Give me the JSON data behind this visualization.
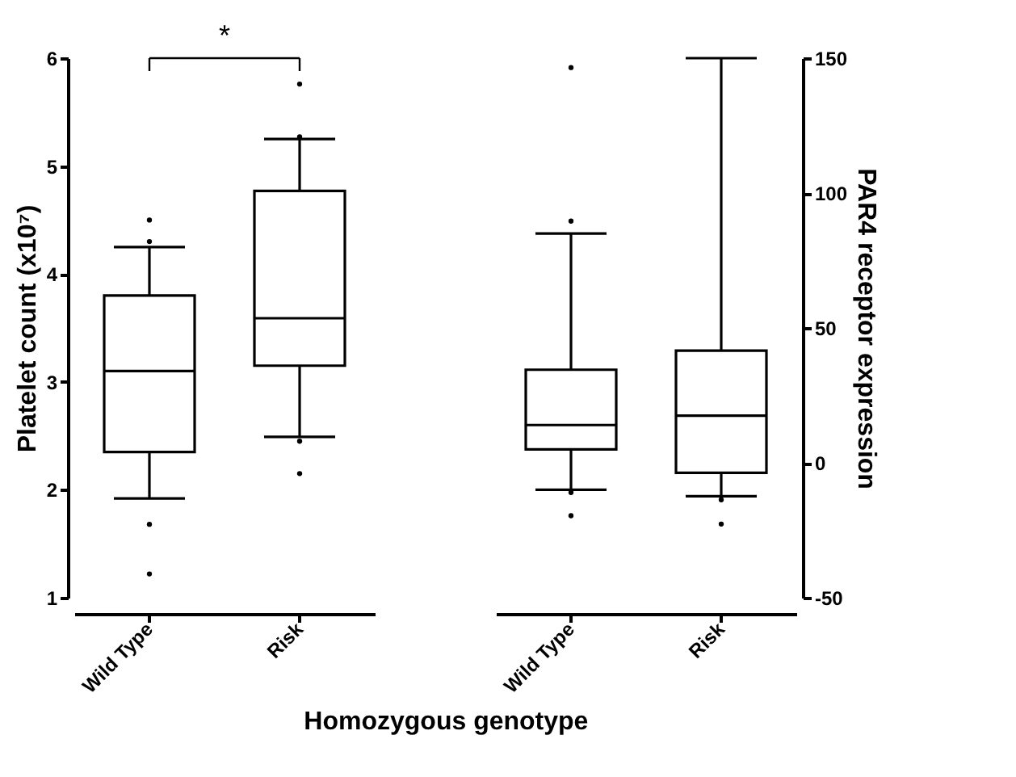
{
  "chart_data": [
    {
      "type": "box",
      "categories": [
        "Wild Type",
        "Risk"
      ],
      "xlabel": "Homozygous genotype",
      "ylabel": "Platelet count (x10⁷)",
      "ylim": [
        1,
        6
      ],
      "yticks": [
        1,
        2,
        3,
        4,
        5,
        6
      ],
      "annotations": [
        "*"
      ],
      "boxes": [
        {
          "low": 1.92,
          "q1": 2.35,
          "median": 3.1,
          "q3": 3.8,
          "high": 4.25,
          "outliers": [
            4.5,
            4.3,
            1.68,
            1.22
          ]
        },
        {
          "low": 2.49,
          "q1": 3.15,
          "median": 3.59,
          "q3": 4.77,
          "high": 5.25,
          "outliers": [
            5.76,
            5.27,
            2.45,
            2.15
          ]
        }
      ]
    },
    {
      "type": "box",
      "categories": [
        "Wild Type",
        "Risk"
      ],
      "y2label": "PAR4  receptor expression",
      "y2lim": [
        -50,
        150
      ],
      "y2ticks": [
        -50,
        0,
        50,
        100,
        150
      ],
      "series": [
        {
          "axis": "y2",
          "boxes": [
            {
              "low": -10,
              "q1": 5,
              "median": 14,
              "q3": 34.5,
              "high": 85,
              "outliers": [
                146.5,
                89.6,
                -11,
                -19.6
              ]
            },
            {
              "low": -12.4,
              "q1": -3.7,
              "median": 17.5,
              "q3": 41.6,
              "high": 150,
              "outliers": [
                -13.7,
                -22.7
              ]
            }
          ]
        }
      ]
    }
  ]
}
